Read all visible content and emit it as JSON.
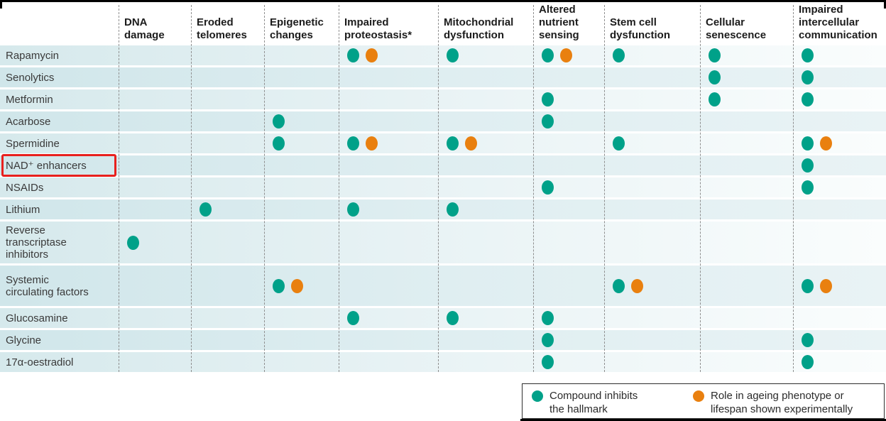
{
  "figure": {
    "colors": {
      "teal": "#00a189",
      "orange": "#e9800f",
      "highlight_red": "#e8201d"
    },
    "columns": [
      {
        "id": "dna_damage",
        "label": "DNA\ndamage"
      },
      {
        "id": "eroded_telomeres",
        "label": "Eroded\ntelomeres"
      },
      {
        "id": "epigenetic_changes",
        "label": "Epigenetic\nchanges"
      },
      {
        "id": "impaired_proteostasis",
        "label": "Impaired\nproteostasis*"
      },
      {
        "id": "mitochondrial_dysfunction",
        "label": "Mitochondrial\ndysfunction"
      },
      {
        "id": "altered_nutrient_sensing",
        "label": "Altered\nnutrient\nsensing"
      },
      {
        "id": "stem_cell_dysfunction",
        "label": "Stem cell\ndysfunction"
      },
      {
        "id": "cellular_senescence",
        "label": "Cellular\nsenescence"
      },
      {
        "id": "impaired_intercellular_communication",
        "label": "Impaired\nintercellular\ncommunication"
      }
    ],
    "rows": [
      {
        "label": "Rapamycin",
        "highlight": false,
        "cells": [
          "",
          "",
          "",
          "TO",
          "T",
          "TO",
          "T",
          "T",
          "T"
        ]
      },
      {
        "label": "Senolytics",
        "highlight": false,
        "cells": [
          "",
          "",
          "",
          "",
          "",
          "",
          "",
          "T",
          "T"
        ]
      },
      {
        "label": "Metformin",
        "highlight": false,
        "cells": [
          "",
          "",
          "",
          "",
          "",
          "T",
          "",
          "T",
          "T"
        ]
      },
      {
        "label": "Acarbose",
        "highlight": false,
        "cells": [
          "",
          "",
          "T",
          "",
          "",
          "T",
          "",
          "",
          ""
        ]
      },
      {
        "label": "Spermidine",
        "highlight": false,
        "cells": [
          "",
          "",
          "T",
          "TO",
          "TO",
          "",
          "T",
          "",
          "TO"
        ]
      },
      {
        "label": "NAD⁺ enhancers",
        "highlight": true,
        "cells": [
          "",
          "",
          "",
          "",
          "",
          "",
          "",
          "",
          "T"
        ]
      },
      {
        "label": "NSAIDs",
        "highlight": false,
        "cells": [
          "",
          "",
          "",
          "",
          "",
          "T",
          "",
          "",
          "T"
        ]
      },
      {
        "label": "Lithium",
        "highlight": false,
        "cells": [
          "",
          "T",
          "",
          "T",
          "T",
          "",
          "",
          "",
          ""
        ]
      },
      {
        "label": "Reverse\ntranscriptase\ninhibitors",
        "highlight": false,
        "cells": [
          "T",
          "",
          "",
          "",
          "",
          "",
          "",
          "",
          ""
        ]
      },
      {
        "label": "Systemic\ncirculating factors",
        "highlight": false,
        "cells": [
          "",
          "",
          "TO",
          "",
          "",
          "",
          "TO",
          "",
          "TO"
        ]
      },
      {
        "label": "Glucosamine",
        "highlight": false,
        "cells": [
          "",
          "",
          "",
          "T",
          "T",
          "T",
          "",
          "",
          ""
        ]
      },
      {
        "label": "Glycine",
        "highlight": false,
        "cells": [
          "",
          "",
          "",
          "",
          "",
          "T",
          "",
          "",
          "T"
        ]
      },
      {
        "label": "17α-oestradiol",
        "highlight": false,
        "cells": [
          "",
          "",
          "",
          "",
          "",
          "T",
          "",
          "",
          "T"
        ]
      }
    ],
    "legend": {
      "teal_label": "Compound inhibits\nthe hallmark",
      "orange_label": "Role in ageing phenotype or\nlifespan shown experimentally"
    }
  },
  "chart_data": {
    "type": "table",
    "title": "",
    "columns": [
      "DNA damage",
      "Eroded telomeres",
      "Epigenetic changes",
      "Impaired proteostasis*",
      "Mitochondrial dysfunction",
      "Altered nutrient sensing",
      "Stem cell dysfunction",
      "Cellular senescence",
      "Impaired intercellular communication"
    ],
    "rows": [
      "Rapamycin",
      "Senolytics",
      "Metformin",
      "Acarbose",
      "Spermidine",
      "NAD⁺ enhancers",
      "NSAIDs",
      "Lithium",
      "Reverse transcriptase inhibitors",
      "Systemic circulating factors",
      "Glucosamine",
      "Glycine",
      "17α-oestradiol"
    ],
    "matrix": [
      [
        "",
        "",
        "",
        "TO",
        "T",
        "TO",
        "T",
        "T",
        "T"
      ],
      [
        "",
        "",
        "",
        "",
        "",
        "",
        "",
        "T",
        "T"
      ],
      [
        "",
        "",
        "",
        "",
        "",
        "T",
        "",
        "T",
        "T"
      ],
      [
        "",
        "",
        "T",
        "",
        "",
        "T",
        "",
        "",
        ""
      ],
      [
        "",
        "",
        "T",
        "TO",
        "TO",
        "",
        "T",
        "",
        "TO"
      ],
      [
        "",
        "",
        "",
        "",
        "",
        "",
        "",
        "",
        "T"
      ],
      [
        "",
        "",
        "",
        "",
        "",
        "T",
        "",
        "",
        "T"
      ],
      [
        "",
        "T",
        "",
        "T",
        "T",
        "",
        "",
        "",
        ""
      ],
      [
        "T",
        "",
        "",
        "",
        "",
        "",
        "",
        "",
        ""
      ],
      [
        "",
        "",
        "TO",
        "",
        "",
        "",
        "TO",
        "",
        "TO"
      ],
      [
        "",
        "",
        "",
        "T",
        "T",
        "T",
        "",
        "",
        ""
      ],
      [
        "",
        "",
        "",
        "",
        "",
        "T",
        "",
        "",
        "T"
      ],
      [
        "",
        "",
        "",
        "",
        "",
        "T",
        "",
        "",
        "T"
      ]
    ],
    "mark_codes": {
      "T": "Compound inhibits the hallmark (teal dot)",
      "O": "Role in ageing phenotype or lifespan shown experimentally (orange dot)"
    },
    "highlighted_row": "NAD⁺ enhancers",
    "legend_position": "bottom-right",
    "grid": "dashed vertical column dividers"
  }
}
